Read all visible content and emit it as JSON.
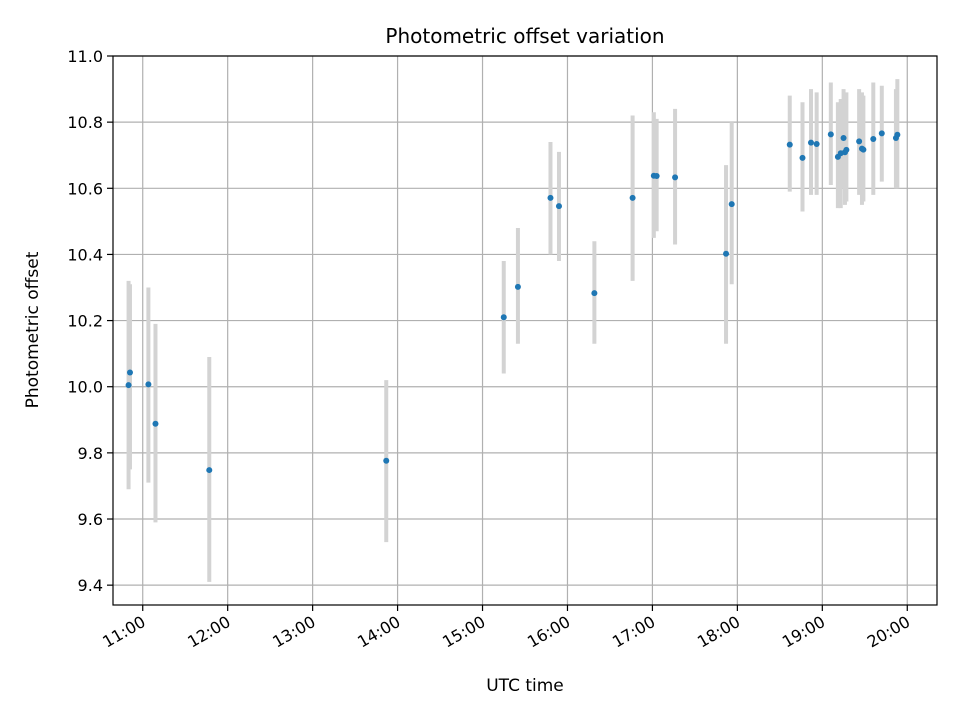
{
  "chart_data": {
    "type": "scatter",
    "title": "Photometric offset variation",
    "xlabel": "UTC time",
    "ylabel": "Photometric offset",
    "x_unit": "hours UTC",
    "xlim": [
      "10:39",
      "20:21"
    ],
    "ylim": [
      9.34,
      11.0
    ],
    "x_ticks": [
      "11:00",
      "12:00",
      "13:00",
      "14:00",
      "15:00",
      "16:00",
      "17:00",
      "18:00",
      "19:00",
      "20:00"
    ],
    "y_ticks": [
      "9.4",
      "9.6",
      "9.8",
      "10.0",
      "10.2",
      "10.4",
      "10.6",
      "10.8",
      "11.0"
    ],
    "grid": true,
    "point_color": "#1f77b4",
    "errorbar_color": "#d3d3d3",
    "points": [
      {
        "t": "10:50",
        "y": 10.005,
        "lo": 9.69,
        "hi": 10.32
      },
      {
        "t": "10:51",
        "y": 10.043,
        "lo": 9.75,
        "hi": 10.31
      },
      {
        "t": "11:04",
        "y": 10.007,
        "lo": 9.71,
        "hi": 10.3
      },
      {
        "t": "11:09",
        "y": 9.888,
        "lo": 9.59,
        "hi": 10.19
      },
      {
        "t": "11:47",
        "y": 9.748,
        "lo": 9.41,
        "hi": 10.09
      },
      {
        "t": "13:52",
        "y": 9.776,
        "lo": 9.53,
        "hi": 10.02
      },
      {
        "t": "15:15",
        "y": 10.21,
        "lo": 10.04,
        "hi": 10.38
      },
      {
        "t": "15:25",
        "y": 10.302,
        "lo": 10.13,
        "hi": 10.48
      },
      {
        "t": "15:48",
        "y": 10.571,
        "lo": 10.4,
        "hi": 10.74
      },
      {
        "t": "15:54",
        "y": 10.546,
        "lo": 10.38,
        "hi": 10.71
      },
      {
        "t": "16:19",
        "y": 10.283,
        "lo": 10.13,
        "hi": 10.44
      },
      {
        "t": "16:46",
        "y": 10.571,
        "lo": 10.32,
        "hi": 10.82
      },
      {
        "t": "17:01",
        "y": 10.638,
        "lo": 10.45,
        "hi": 10.83
      },
      {
        "t": "17:03",
        "y": 10.637,
        "lo": 10.47,
        "hi": 10.81
      },
      {
        "t": "17:16",
        "y": 10.633,
        "lo": 10.43,
        "hi": 10.84
      },
      {
        "t": "17:52",
        "y": 10.402,
        "lo": 10.13,
        "hi": 10.67
      },
      {
        "t": "17:56",
        "y": 10.552,
        "lo": 10.31,
        "hi": 10.8
      },
      {
        "t": "18:37",
        "y": 10.732,
        "lo": 10.59,
        "hi": 10.88
      },
      {
        "t": "18:46",
        "y": 10.692,
        "lo": 10.53,
        "hi": 10.86
      },
      {
        "t": "18:52",
        "y": 10.738,
        "lo": 10.58,
        "hi": 10.9
      },
      {
        "t": "18:56",
        "y": 10.734,
        "lo": 10.58,
        "hi": 10.89
      },
      {
        "t": "19:06",
        "y": 10.763,
        "lo": 10.61,
        "hi": 10.92
      },
      {
        "t": "19:11",
        "y": 10.695,
        "lo": 10.54,
        "hi": 10.86
      },
      {
        "t": "19:13",
        "y": 10.706,
        "lo": 10.54,
        "hi": 10.87
      },
      {
        "t": "19:15",
        "y": 10.752,
        "lo": 10.6,
        "hi": 10.9
      },
      {
        "t": "19:16",
        "y": 10.709,
        "lo": 10.55,
        "hi": 10.88
      },
      {
        "t": "19:17",
        "y": 10.716,
        "lo": 10.56,
        "hi": 10.89
      },
      {
        "t": "19:26",
        "y": 10.742,
        "lo": 10.58,
        "hi": 10.9
      },
      {
        "t": "19:28",
        "y": 10.72,
        "lo": 10.55,
        "hi": 10.89
      },
      {
        "t": "19:29",
        "y": 10.717,
        "lo": 10.56,
        "hi": 10.88
      },
      {
        "t": "19:36",
        "y": 10.749,
        "lo": 10.58,
        "hi": 10.92
      },
      {
        "t": "19:42",
        "y": 10.766,
        "lo": 10.62,
        "hi": 10.91
      },
      {
        "t": "19:52",
        "y": 10.752,
        "lo": 10.6,
        "hi": 10.9
      },
      {
        "t": "19:53",
        "y": 10.762,
        "lo": 10.6,
        "hi": 10.93
      }
    ]
  }
}
